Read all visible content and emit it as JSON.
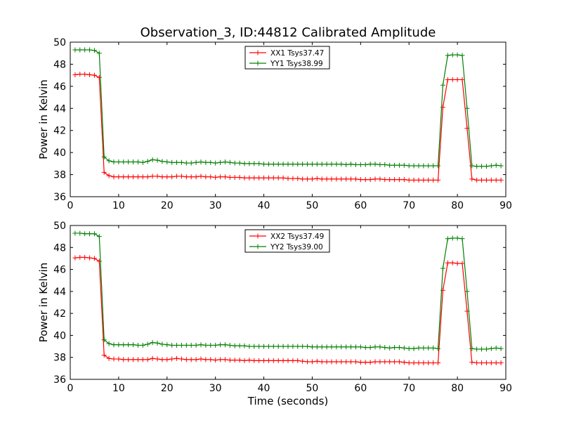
{
  "chart_data": {
    "type": "line",
    "title": "Observation_3, ID:44812 Calibrated Amplitude",
    "x": [
      1,
      2,
      3,
      4,
      5,
      6,
      7,
      8,
      9,
      10,
      11,
      12,
      13,
      14,
      15,
      16,
      17,
      18,
      19,
      20,
      21,
      22,
      23,
      24,
      25,
      26,
      27,
      28,
      29,
      30,
      31,
      32,
      33,
      34,
      35,
      36,
      37,
      38,
      39,
      40,
      41,
      42,
      43,
      44,
      45,
      46,
      47,
      48,
      49,
      50,
      51,
      52,
      53,
      54,
      55,
      56,
      57,
      58,
      59,
      60,
      61,
      62,
      63,
      64,
      65,
      66,
      67,
      68,
      69,
      70,
      71,
      72,
      73,
      74,
      75,
      76,
      77,
      78,
      79,
      80,
      81,
      82,
      83,
      84,
      85,
      86,
      87,
      88,
      89
    ],
    "xlabel": "Time (seconds)",
    "xlim": [
      0,
      90
    ],
    "x_ticks": [
      0,
      10,
      20,
      30,
      40,
      50,
      60,
      70,
      80,
      90
    ],
    "panels": [
      {
        "ylabel": "Power in Kelvin",
        "ylim": [
          36,
          50
        ],
        "y_ticks": [
          36,
          38,
          40,
          42,
          44,
          46,
          48,
          50
        ],
        "legend_position": "top-center",
        "series": [
          {
            "name": "XX1 Tsys37.47",
            "color": "#ff0000",
            "values": [
              47.05,
              47.1,
              47.1,
              47.05,
              47.0,
              46.8,
              38.2,
              37.9,
              37.8,
              37.8,
              37.8,
              37.8,
              37.8,
              37.8,
              37.8,
              37.8,
              37.85,
              37.85,
              37.8,
              37.8,
              37.8,
              37.85,
              37.85,
              37.8,
              37.8,
              37.8,
              37.85,
              37.8,
              37.8,
              37.75,
              37.8,
              37.8,
              37.75,
              37.75,
              37.75,
              37.7,
              37.7,
              37.7,
              37.7,
              37.7,
              37.7,
              37.7,
              37.7,
              37.7,
              37.65,
              37.65,
              37.65,
              37.6,
              37.6,
              37.6,
              37.65,
              37.6,
              37.6,
              37.6,
              37.6,
              37.6,
              37.6,
              37.6,
              37.6,
              37.55,
              37.55,
              37.55,
              37.6,
              37.6,
              37.55,
              37.55,
              37.55,
              37.55,
              37.55,
              37.5,
              37.5,
              37.5,
              37.5,
              37.5,
              37.5,
              37.5,
              44.1,
              46.6,
              46.6,
              46.6,
              46.6,
              42.2,
              37.6,
              37.5,
              37.5,
              37.5,
              37.5,
              37.5,
              37.5
            ]
          },
          {
            "name": "YY1 Tsys38.99",
            "color": "#008000",
            "values": [
              49.3,
              49.3,
              49.3,
              49.3,
              49.25,
              49.0,
              39.6,
              39.25,
              39.15,
              39.15,
              39.15,
              39.15,
              39.15,
              39.15,
              39.1,
              39.2,
              39.35,
              39.3,
              39.2,
              39.15,
              39.1,
              39.1,
              39.1,
              39.05,
              39.05,
              39.1,
              39.15,
              39.1,
              39.1,
              39.05,
              39.1,
              39.15,
              39.1,
              39.05,
              39.05,
              39.0,
              39.0,
              39.0,
              39.0,
              38.95,
              38.95,
              38.95,
              38.95,
              38.95,
              38.95,
              38.95,
              38.95,
              38.95,
              38.95,
              38.95,
              38.95,
              38.95,
              38.95,
              38.95,
              38.95,
              38.95,
              38.9,
              38.95,
              38.9,
              38.9,
              38.9,
              38.95,
              38.95,
              38.9,
              38.9,
              38.85,
              38.85,
              38.85,
              38.85,
              38.8,
              38.8,
              38.8,
              38.8,
              38.8,
              38.8,
              38.8,
              46.1,
              48.8,
              48.85,
              48.85,
              48.8,
              44.0,
              38.8,
              38.75,
              38.75,
              38.75,
              38.8,
              38.85,
              38.8
            ]
          }
        ]
      },
      {
        "ylabel": "Power in Kelvin",
        "ylim": [
          36,
          50
        ],
        "y_ticks": [
          36,
          38,
          40,
          42,
          44,
          46,
          48,
          50
        ],
        "legend_position": "top-center",
        "series": [
          {
            "name": "XX2 Tsys37.49",
            "color": "#ff0000",
            "values": [
              47.05,
              47.1,
              47.1,
              47.05,
              47.0,
              46.75,
              38.2,
              37.9,
              37.85,
              37.85,
              37.8,
              37.8,
              37.8,
              37.8,
              37.8,
              37.8,
              37.9,
              37.85,
              37.8,
              37.8,
              37.85,
              37.9,
              37.85,
              37.8,
              37.8,
              37.8,
              37.85,
              37.8,
              37.8,
              37.75,
              37.8,
              37.8,
              37.75,
              37.75,
              37.75,
              37.7,
              37.75,
              37.7,
              37.7,
              37.7,
              37.7,
              37.7,
              37.7,
              37.7,
              37.7,
              37.7,
              37.7,
              37.65,
              37.6,
              37.6,
              37.65,
              37.6,
              37.6,
              37.6,
              37.6,
              37.6,
              37.6,
              37.6,
              37.6,
              37.55,
              37.55,
              37.55,
              37.6,
              37.6,
              37.6,
              37.6,
              37.6,
              37.6,
              37.55,
              37.5,
              37.5,
              37.5,
              37.5,
              37.5,
              37.5,
              37.5,
              44.1,
              46.6,
              46.6,
              46.55,
              46.55,
              42.2,
              37.55,
              37.5,
              37.5,
              37.5,
              37.5,
              37.5,
              37.5
            ]
          },
          {
            "name": "YY2 Tsys39.00",
            "color": "#008000",
            "values": [
              49.3,
              49.3,
              49.25,
              49.25,
              49.25,
              49.0,
              39.6,
              39.25,
              39.15,
              39.15,
              39.15,
              39.15,
              39.15,
              39.1,
              39.1,
              39.2,
              39.35,
              39.3,
              39.2,
              39.15,
              39.1,
              39.1,
              39.1,
              39.1,
              39.1,
              39.1,
              39.15,
              39.1,
              39.1,
              39.1,
              39.15,
              39.15,
              39.1,
              39.05,
              39.05,
              39.05,
              39.0,
              39.0,
              39.0,
              39.0,
              39.0,
              39.0,
              39.0,
              39.0,
              39.0,
              39.0,
              39.0,
              39.0,
              39.0,
              38.95,
              38.95,
              38.95,
              38.95,
              38.95,
              38.95,
              38.95,
              38.95,
              38.95,
              38.95,
              38.95,
              38.9,
              38.9,
              38.95,
              38.95,
              38.9,
              38.85,
              38.9,
              38.9,
              38.85,
              38.8,
              38.8,
              38.85,
              38.85,
              38.85,
              38.85,
              38.8,
              46.1,
              48.8,
              48.85,
              48.85,
              48.8,
              44.0,
              38.8,
              38.75,
              38.75,
              38.75,
              38.8,
              38.85,
              38.8
            ]
          }
        ]
      }
    ]
  }
}
